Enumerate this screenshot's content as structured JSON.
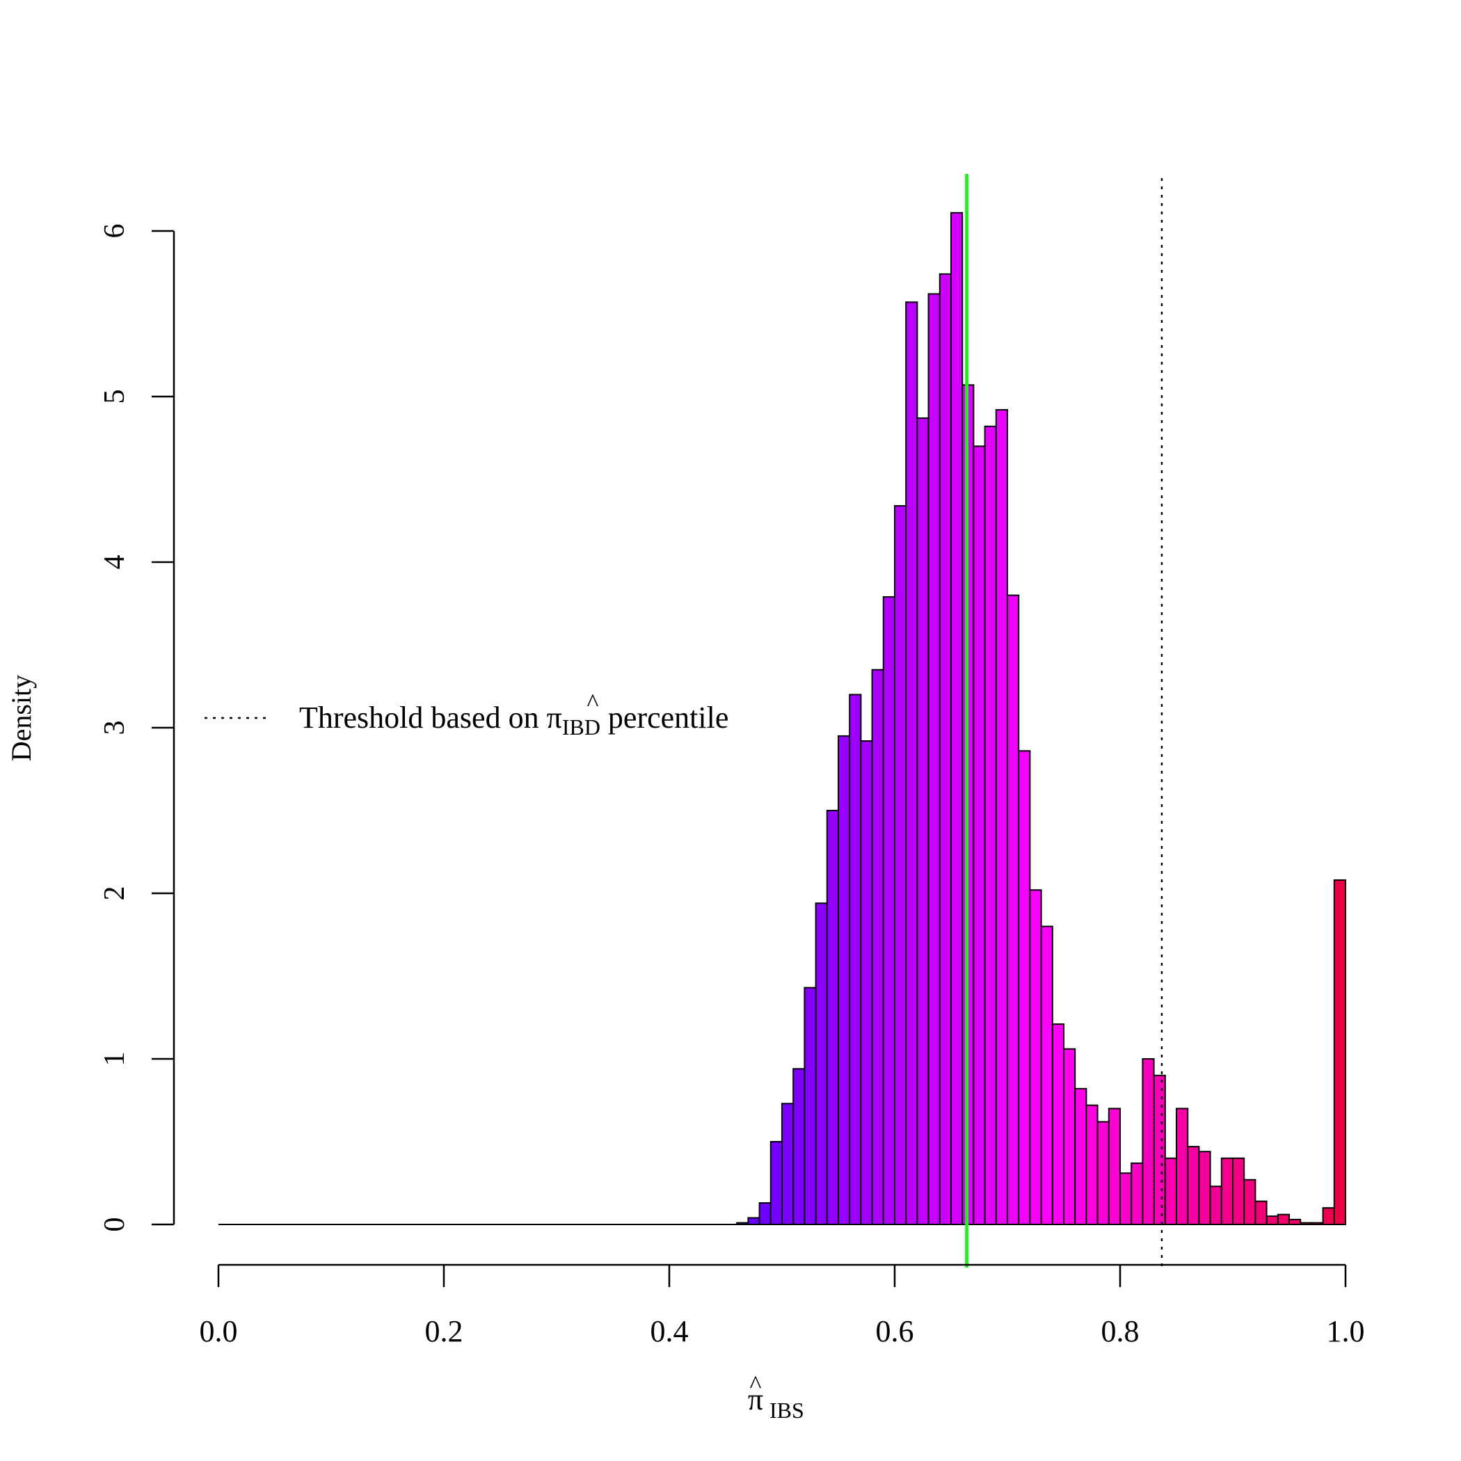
{
  "chart_data": {
    "type": "bar",
    "title": "",
    "ylabel": "Density",
    "xlabel": {
      "base": "π",
      "hat": "^",
      "sub": "IBS"
    },
    "xlim": [
      0,
      1
    ],
    "ylim": [
      0,
      6.1
    ],
    "x_ticks": [
      0.0,
      0.2,
      0.4,
      0.6,
      0.8,
      1.0
    ],
    "x_tick_labels": [
      "0.0",
      "0.2",
      "0.4",
      "0.6",
      "0.8",
      "1.0"
    ],
    "y_ticks": [
      0,
      1,
      2,
      3,
      4,
      5,
      6
    ],
    "y_tick_labels": [
      "0",
      "1",
      "2",
      "3",
      "4",
      "5",
      "6"
    ],
    "bin_width": 0.01,
    "bin_start": 0.46,
    "values": [
      0.01,
      0.04,
      0.13,
      0.5,
      0.73,
      0.94,
      1.43,
      1.94,
      2.5,
      2.95,
      3.2,
      2.92,
      3.35,
      3.79,
      4.34,
      5.57,
      4.87,
      5.62,
      5.74,
      6.11,
      5.07,
      4.7,
      4.82,
      4.92,
      3.8,
      2.86,
      2.02,
      1.8,
      1.21,
      1.06,
      0.82,
      0.72,
      0.62,
      0.7,
      0.31,
      0.37,
      1.0,
      0.9,
      0.4,
      0.7,
      0.47,
      0.44,
      0.23,
      0.4,
      0.4,
      0.27,
      0.14,
      0.05,
      0.06,
      0.03,
      0.01,
      0.01,
      0.1,
      2.08
    ],
    "bar_colors": {
      "start": "#6000ff",
      "mid": "#ff00ff",
      "end": "#ee0044"
    },
    "bar_color_breaks": [
      0.46,
      0.73,
      1.0
    ],
    "baseline_range": [
      0.0,
      0.46
    ],
    "green_line": {
      "x": 0.664,
      "color": "#22ee22"
    },
    "threshold_line": {
      "x": 0.837,
      "style": "dotted",
      "color": "#000000"
    },
    "legend": {
      "position": "left-middle",
      "line_style": "dotted",
      "text_before": "Threshold based on ",
      "symbol_base": "π",
      "symbol_hat": "^",
      "symbol_sub": "IBD",
      "text_after": " percentile"
    }
  }
}
